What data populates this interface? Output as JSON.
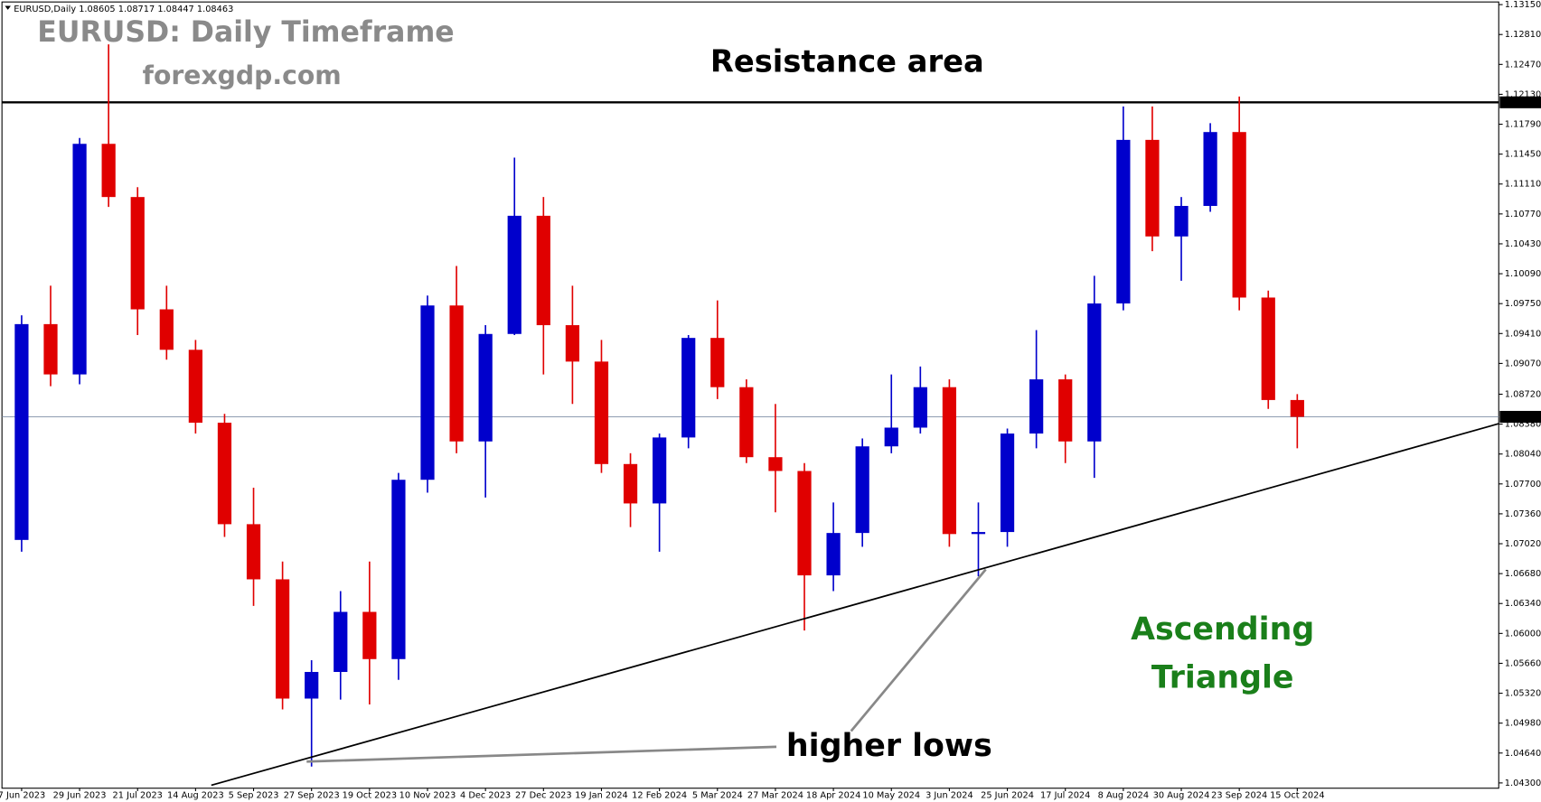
{
  "chart_data": {
    "type": "candlestick",
    "header": "EURUSD,Daily  1.08605 1.08717 1.08447 1.08463",
    "title": "EURUSD: Daily Timeframe",
    "subtitle": "forexgdp.com",
    "annotations": {
      "resistance": "Resistance area",
      "pattern": [
        "Ascending",
        "Triangle"
      ],
      "lows": "higher lows"
    },
    "categories": [
      "7 Jun 2023",
      null,
      "29 Jun 2023",
      null,
      "21 Jul 2023",
      null,
      "14 Aug 2023",
      null,
      "5 Sep 2023",
      null,
      "27 Sep 2023",
      null,
      "19 Oct 2023",
      null,
      "10 Nov 2023",
      null,
      "4 Dec 2023",
      null,
      "27 Dec 2023",
      null,
      "19 Jan 2024",
      null,
      "12 Feb 2024",
      null,
      "5 Mar 2024",
      null,
      "27 Mar 2024",
      null,
      "18 Apr 2024",
      null,
      "10 May 2024",
      null,
      "3 Jun 2024",
      null,
      "25 Jun 2024",
      null,
      "17 Jul 2024",
      null,
      "8 Aug 2024",
      null,
      "30 Aug 2024",
      null,
      "23 Sep 2024",
      null,
      "15 Oct 2024"
    ],
    "open": [
      1.07063,
      1.09517,
      1.08945,
      1.11567,
      1.10962,
      1.09685,
      1.09225,
      1.08396,
      1.07242,
      1.06615,
      1.05259,
      1.05562,
      1.06245,
      1.05708,
      1.07747,
      1.09729,
      1.08183,
      1.09405,
      1.10749,
      1.09505,
      1.09091,
      1.07926,
      1.07478,
      1.08228,
      1.0936,
      1.088,
      1.08004,
      1.07847,
      1.0666,
      1.07142,
      1.08127,
      1.0834,
      1.088,
      1.0713,
      1.07153,
      1.08273,
      1.08889,
      1.08183,
      1.09752,
      1.11612,
      1.10514,
      1.10861,
      1.11701,
      1.09819,
      1.08654
    ],
    "high": [
      1.09617,
      1.09954,
      1.11634,
      1.12698,
      1.11074,
      1.09954,
      1.09337,
      1.08497,
      1.07657,
      1.06817,
      1.05696,
      1.06481,
      1.06817,
      1.07825,
      1.09842,
      1.10178,
      1.09505,
      1.1141,
      1.10962,
      1.09954,
      1.09337,
      1.08049,
      1.08273,
      1.09393,
      1.09786,
      1.08889,
      1.08609,
      1.07937,
      1.07489,
      1.08217,
      1.08945,
      1.09035,
      1.08889,
      1.07489,
      1.08329,
      1.09449,
      1.08945,
      1.10066,
      1.11992,
      1.11992,
      1.10962,
      1.11802,
      1.12105,
      1.09898,
      1.08721
    ],
    "low": [
      1.06929,
      1.08811,
      1.08833,
      1.1085,
      1.09393,
      1.09113,
      1.08273,
      1.07097,
      1.06313,
      1.05136,
      1.04486,
      1.05248,
      1.05192,
      1.05472,
      1.07601,
      1.08049,
      1.07545,
      1.09393,
      1.08945,
      1.08609,
      1.07825,
      1.07209,
      1.06929,
      1.08105,
      1.08665,
      1.07937,
      1.07377,
      1.06033,
      1.06481,
      1.06985,
      1.08049,
      1.08273,
      1.06985,
      1.06649,
      1.06985,
      1.08105,
      1.07937,
      1.07769,
      1.09673,
      1.10346,
      1.1001,
      1.10794,
      1.09673,
      1.08553,
      1.08105
    ],
    "close": [
      1.09517,
      1.08945,
      1.11567,
      1.10962,
      1.09685,
      1.09225,
      1.08396,
      1.07242,
      1.06615,
      1.05259,
      1.05562,
      1.06245,
      1.05708,
      1.07747,
      1.09729,
      1.08183,
      1.09405,
      1.10749,
      1.09505,
      1.09091,
      1.07926,
      1.07478,
      1.08228,
      1.0936,
      1.088,
      1.08004,
      1.07847,
      1.0666,
      1.07142,
      1.08127,
      1.0834,
      1.088,
      1.0713,
      1.07153,
      1.08273,
      1.08889,
      1.08183,
      1.09752,
      1.11612,
      1.10514,
      1.10861,
      1.11701,
      1.09819,
      1.08654,
      1.08463
    ],
    "up_color": "#0000cc",
    "down_color": "#e00000",
    "ylim": [
      1.0424,
      1.1318
    ],
    "yticks": [
      {
        "value": 1.1315,
        "label": "1.13150"
      },
      {
        "value": 1.1281,
        "label": "1.12810"
      },
      {
        "value": 1.1247,
        "label": "1.12470"
      },
      {
        "value": 1.1213,
        "label": "1.12130"
      },
      {
        "value": 1.1179,
        "label": "1.11790"
      },
      {
        "value": 1.1145,
        "label": "1.11450"
      },
      {
        "value": 1.1111,
        "label": "1.11110"
      },
      {
        "value": 1.1077,
        "label": "1.10770"
      },
      {
        "value": 1.1043,
        "label": "1.10430"
      },
      {
        "value": 1.1009,
        "label": "1.10090"
      },
      {
        "value": 1.0975,
        "label": "1.09750"
      },
      {
        "value": 1.0941,
        "label": "1.09410"
      },
      {
        "value": 1.0907,
        "label": "1.09070"
      },
      {
        "value": 1.0872,
        "label": "1.08720"
      },
      {
        "value": 1.0838,
        "label": "1.08380"
      },
      {
        "value": 1.0804,
        "label": "1.08040"
      },
      {
        "value": 1.077,
        "label": "1.07700"
      },
      {
        "value": 1.0736,
        "label": "1.07360"
      },
      {
        "value": 1.0702,
        "label": "1.07020"
      },
      {
        "value": 1.0668,
        "label": "1.06680"
      },
      {
        "value": 1.0634,
        "label": "1.06340"
      },
      {
        "value": 1.06,
        "label": "1.06000"
      },
      {
        "value": 1.0566,
        "label": "1.05660"
      },
      {
        "value": 1.0532,
        "label": "1.05320"
      },
      {
        "value": 1.0498,
        "label": "1.04980"
      },
      {
        "value": 1.0464,
        "label": "1.04640"
      },
      {
        "value": 1.043,
        "label": "1.04300"
      }
    ],
    "resistance_level": 1.12039,
    "current_price": 1.08463
  }
}
